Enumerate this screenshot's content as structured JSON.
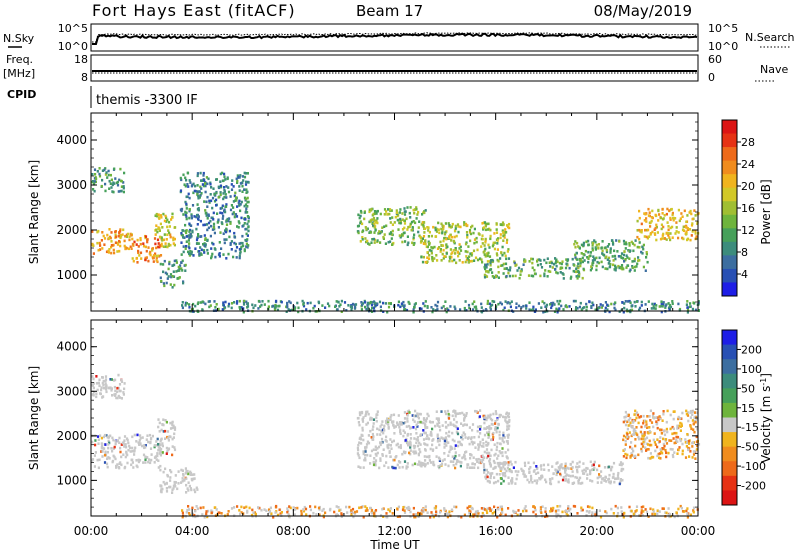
{
  "header": {
    "radar": "Fort Hays East (fitACF)",
    "beam": "Beam 17",
    "date": "08/May/2019"
  },
  "noise_panel": {
    "left_label": "N.Sky",
    "right_label": "N.Search",
    "left_ticks": [
      "10^5",
      "10^0"
    ],
    "right_ticks": [
      "10^5",
      "10^0"
    ]
  },
  "freq_panel": {
    "left_label_1": "Freq.",
    "left_label_2": "[MHz]",
    "right_label": "Nave",
    "left_ticks": [
      "18",
      "8"
    ],
    "right_ticks": [
      "60",
      "0"
    ]
  },
  "cpid": {
    "label": "CPID",
    "value": "themis -3300 IF"
  },
  "colors": {
    "power_scale": [
      "#1e1ee6",
      "#2850b4",
      "#3c6ea0",
      "#3c8c7c",
      "#46a05a",
      "#6eb43c",
      "#a0be32",
      "#d2c828",
      "#f0b41e",
      "#f08c1e",
      "#ee6a1a",
      "#e63214",
      "#dc1414"
    ],
    "velocity_scale": [
      "#1e1ee6",
      "#2850b4",
      "#3c6ea0",
      "#3c8c7c",
      "#46a05a",
      "#6eb43c",
      "#c8c8c8",
      "#f0b41e",
      "#f08c1e",
      "#ee6a1a",
      "#e63214",
      "#dc1414"
    ],
    "ground_scatter": "#c8c8c8"
  },
  "chart_data": [
    {
      "type": "heatmap",
      "quantity": "Power",
      "ylabel": "Slant Range [km]",
      "y_ticks": [
        "1000",
        "2000",
        "3000",
        "4000"
      ],
      "ylim": [
        200,
        4600
      ],
      "xlim": [
        0,
        24
      ],
      "colorbar_label": "Power [dB]",
      "colorbar_ticks": [
        "4",
        "8",
        "12",
        "16",
        "20",
        "24",
        "28"
      ],
      "colorbar_range": [
        0,
        32
      ],
      "regions": [
        {
          "t0": 0.0,
          "t1": 1.6,
          "r0": 1500,
          "r1": 2050,
          "value": 22
        },
        {
          "t0": 1.6,
          "t1": 2.8,
          "r0": 1300,
          "r1": 1900,
          "value": 24
        },
        {
          "t0": 2.5,
          "t1": 3.3,
          "r0": 1600,
          "r1": 2400,
          "value": 18
        },
        {
          "t0": 0.0,
          "t1": 1.3,
          "r0": 2850,
          "r1": 3400,
          "value": 10
        },
        {
          "t0": 2.7,
          "t1": 3.7,
          "r0": 750,
          "r1": 1350,
          "value": 10
        },
        {
          "t0": 3.5,
          "t1": 6.2,
          "r0": 1400,
          "r1": 3300,
          "value": 8
        },
        {
          "t0": 10.5,
          "t1": 13.2,
          "r0": 1700,
          "r1": 2550,
          "value": 14
        },
        {
          "t0": 13.0,
          "t1": 16.5,
          "r0": 1300,
          "r1": 2200,
          "value": 16
        },
        {
          "t0": 15.5,
          "t1": 19.5,
          "r0": 950,
          "r1": 1400,
          "value": 12
        },
        {
          "t0": 19.0,
          "t1": 22.0,
          "r0": 1100,
          "r1": 1800,
          "value": 12
        },
        {
          "t0": 21.5,
          "t1": 24.0,
          "r0": 1800,
          "r1": 2500,
          "value": 20
        },
        {
          "t0": 3.5,
          "t1": 24.0,
          "r0": 200,
          "r1": 450,
          "value": 8
        }
      ]
    },
    {
      "type": "heatmap",
      "quantity": "Velocity",
      "ylabel": "Slant Range [km]",
      "y_ticks": [
        "1000",
        "2000",
        "3000",
        "4000"
      ],
      "ylim": [
        200,
        4600
      ],
      "xlim": [
        0,
        24
      ],
      "xlabel": "Time UT",
      "x_ticks": [
        "00:00",
        "04:00",
        "08:00",
        "12:00",
        "16:00",
        "20:00",
        "00:00"
      ],
      "colorbar_label": "Velocity [m s^-1]",
      "colorbar_ticks": [
        "200",
        "100",
        "50",
        "15",
        "-15",
        "-50",
        "-100",
        "-200"
      ],
      "regions": [
        {
          "t0": 0.0,
          "t1": 2.8,
          "r0": 1300,
          "r1": 2050,
          "value": 0
        },
        {
          "t0": 2.5,
          "t1": 3.3,
          "r0": 1600,
          "r1": 2400,
          "value": 0
        },
        {
          "t0": 0.0,
          "t1": 1.3,
          "r0": 2850,
          "r1": 3400,
          "value": 0
        },
        {
          "t0": 2.7,
          "t1": 4.2,
          "r0": 750,
          "r1": 1300,
          "value": 0
        },
        {
          "t0": 10.5,
          "t1": 16.5,
          "r0": 1300,
          "r1": 2600,
          "value": 0
        },
        {
          "t0": 15.5,
          "t1": 21.0,
          "r0": 950,
          "r1": 1450,
          "value": 0
        },
        {
          "t0": 21.0,
          "t1": 24.0,
          "r0": 1500,
          "r1": 2600,
          "value": -15
        },
        {
          "t0": 3.5,
          "t1": 24.0,
          "r0": 200,
          "r1": 450,
          "value": -50
        }
      ]
    }
  ]
}
